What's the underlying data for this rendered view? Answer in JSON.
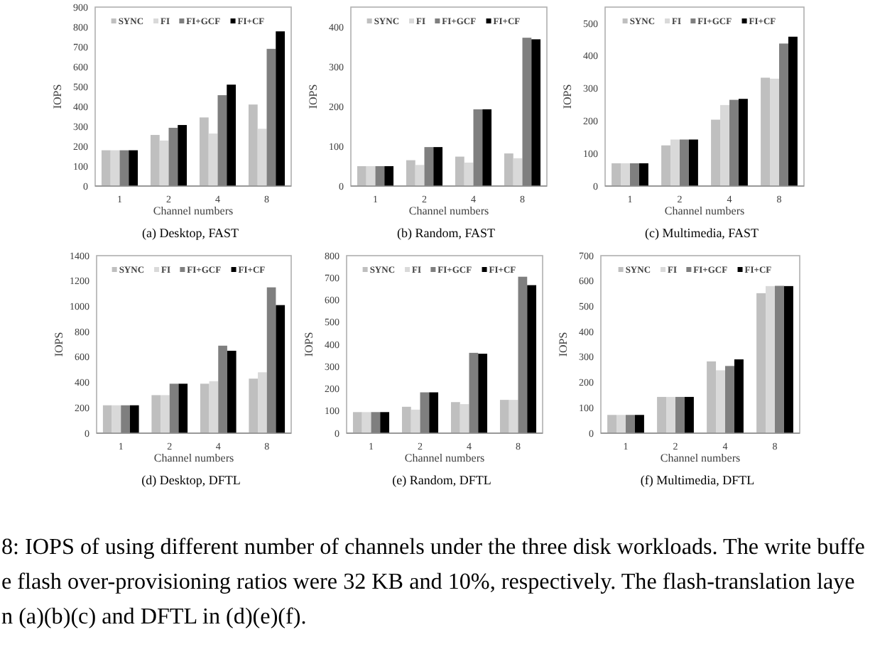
{
  "chart_data": [
    {
      "type": "bar",
      "title": "(a) Desktop, FAST",
      "xlabel": "Channel numbers",
      "ylabel": "IOPS",
      "categories": [
        "1",
        "2",
        "4",
        "8"
      ],
      "series": [
        {
          "name": "SYNC",
          "color": "#bfbfbf",
          "values": [
            180,
            257,
            345,
            410
          ]
        },
        {
          "name": "FI",
          "color": "#d9d9d9",
          "values": [
            180,
            229,
            264,
            288
          ]
        },
        {
          "name": "FI+GCF",
          "color": "#7f7f7f",
          "values": [
            180,
            293,
            457,
            690
          ]
        },
        {
          "name": "FI+CF",
          "color": "#000000",
          "values": [
            180,
            307,
            510,
            778
          ]
        }
      ],
      "ylim": [
        0,
        900
      ],
      "yticks": [
        0,
        100,
        200,
        300,
        400,
        500,
        600,
        700,
        800,
        900
      ],
      "legend": "top"
    },
    {
      "type": "bar",
      "title": "(b) Random, FAST",
      "xlabel": "Channel numbers",
      "ylabel": "IOPS",
      "categories": [
        "1",
        "2",
        "4",
        "8"
      ],
      "series": [
        {
          "name": "SYNC",
          "color": "#bfbfbf",
          "values": [
            50,
            65,
            74,
            82
          ]
        },
        {
          "name": "FI",
          "color": "#d9d9d9",
          "values": [
            50,
            53,
            59,
            70
          ]
        },
        {
          "name": "FI+GCF",
          "color": "#7f7f7f",
          "values": [
            50,
            98,
            193,
            373
          ]
        },
        {
          "name": "FI+CF",
          "color": "#000000",
          "values": [
            50,
            98,
            193,
            369
          ]
        }
      ],
      "ylim": [
        0,
        450
      ],
      "yticks": [
        0,
        100,
        200,
        300,
        400
      ],
      "legend": "top"
    },
    {
      "type": "bar",
      "title": "(c) Multimedia, FAST",
      "xlabel": "Channel numbers",
      "ylabel": "IOPS",
      "categories": [
        "1",
        "2",
        "4",
        "8"
      ],
      "series": [
        {
          "name": "SYNC",
          "color": "#bfbfbf",
          "values": [
            70,
            125,
            204,
            333
          ]
        },
        {
          "name": "FI",
          "color": "#d9d9d9",
          "values": [
            70,
            143,
            249,
            330
          ]
        },
        {
          "name": "FI+GCF",
          "color": "#7f7f7f",
          "values": [
            70,
            143,
            265,
            438
          ]
        },
        {
          "name": "FI+CF",
          "color": "#000000",
          "values": [
            70,
            143,
            268,
            459
          ]
        }
      ],
      "ylim": [
        0,
        550
      ],
      "yticks": [
        0,
        100,
        200,
        300,
        400,
        500
      ],
      "legend": "top"
    },
    {
      "type": "bar",
      "title": "(d) Desktop, DFTL",
      "xlabel": "Channel numbers",
      "ylabel": "IOPS",
      "categories": [
        "1",
        "2",
        "4",
        "8"
      ],
      "series": [
        {
          "name": "SYNC",
          "color": "#bfbfbf",
          "values": [
            220,
            300,
            390,
            430
          ]
        },
        {
          "name": "FI",
          "color": "#d9d9d9",
          "values": [
            220,
            300,
            410,
            480
          ]
        },
        {
          "name": "FI+GCF",
          "color": "#7f7f7f",
          "values": [
            220,
            390,
            690,
            1150
          ]
        },
        {
          "name": "FI+CF",
          "color": "#000000",
          "values": [
            220,
            390,
            650,
            1010
          ]
        }
      ],
      "ylim": [
        0,
        1400
      ],
      "yticks": [
        0,
        200,
        400,
        600,
        800,
        1000,
        1200,
        1400
      ],
      "legend": "top"
    },
    {
      "type": "bar",
      "title": "(e) Random, DFTL",
      "xlabel": "Channel numbers",
      "ylabel": "IOPS",
      "categories": [
        "1",
        "2",
        "4",
        "8"
      ],
      "series": [
        {
          "name": "SYNC",
          "color": "#bfbfbf",
          "values": [
            95,
            119,
            140,
            150
          ]
        },
        {
          "name": "FI",
          "color": "#d9d9d9",
          "values": [
            95,
            106,
            131,
            150
          ]
        },
        {
          "name": "FI+GCF",
          "color": "#7f7f7f",
          "values": [
            95,
            184,
            362,
            705
          ]
        },
        {
          "name": "FI+CF",
          "color": "#000000",
          "values": [
            95,
            184,
            358,
            667
          ]
        }
      ],
      "ylim": [
        0,
        800
      ],
      "yticks": [
        0,
        100,
        200,
        300,
        400,
        500,
        600,
        700,
        800
      ],
      "legend": "top"
    },
    {
      "type": "bar",
      "title": "(f) Multimedia, DFTL",
      "xlabel": "Channel numbers",
      "ylabel": "IOPS",
      "categories": [
        "1",
        "2",
        "4",
        "8"
      ],
      "series": [
        {
          "name": "SYNC",
          "color": "#bfbfbf",
          "values": [
            72,
            143,
            283,
            552
          ]
        },
        {
          "name": "FI",
          "color": "#d9d9d9",
          "values": [
            72,
            143,
            248,
            580
          ]
        },
        {
          "name": "FI+GCF",
          "color": "#7f7f7f",
          "values": [
            72,
            143,
            265,
            581
          ]
        },
        {
          "name": "FI+CF",
          "color": "#000000",
          "values": [
            72,
            143,
            291,
            580
          ]
        }
      ],
      "ylim": [
        0,
        700
      ],
      "yticks": [
        0,
        100,
        200,
        300,
        400,
        500,
        600,
        700
      ],
      "legend": "top"
    },
    {
      "type": "other",
      "annotations": [
        "8: IOPS of using different number of channels under the three disk workloads. The write buffe",
        "e flash over-provisioning ratios were 32 KB and 10%, respectively. The flash-translation laye",
        "n (a)(b)(c) and DFTL in (d)(e)(f)."
      ]
    }
  ]
}
